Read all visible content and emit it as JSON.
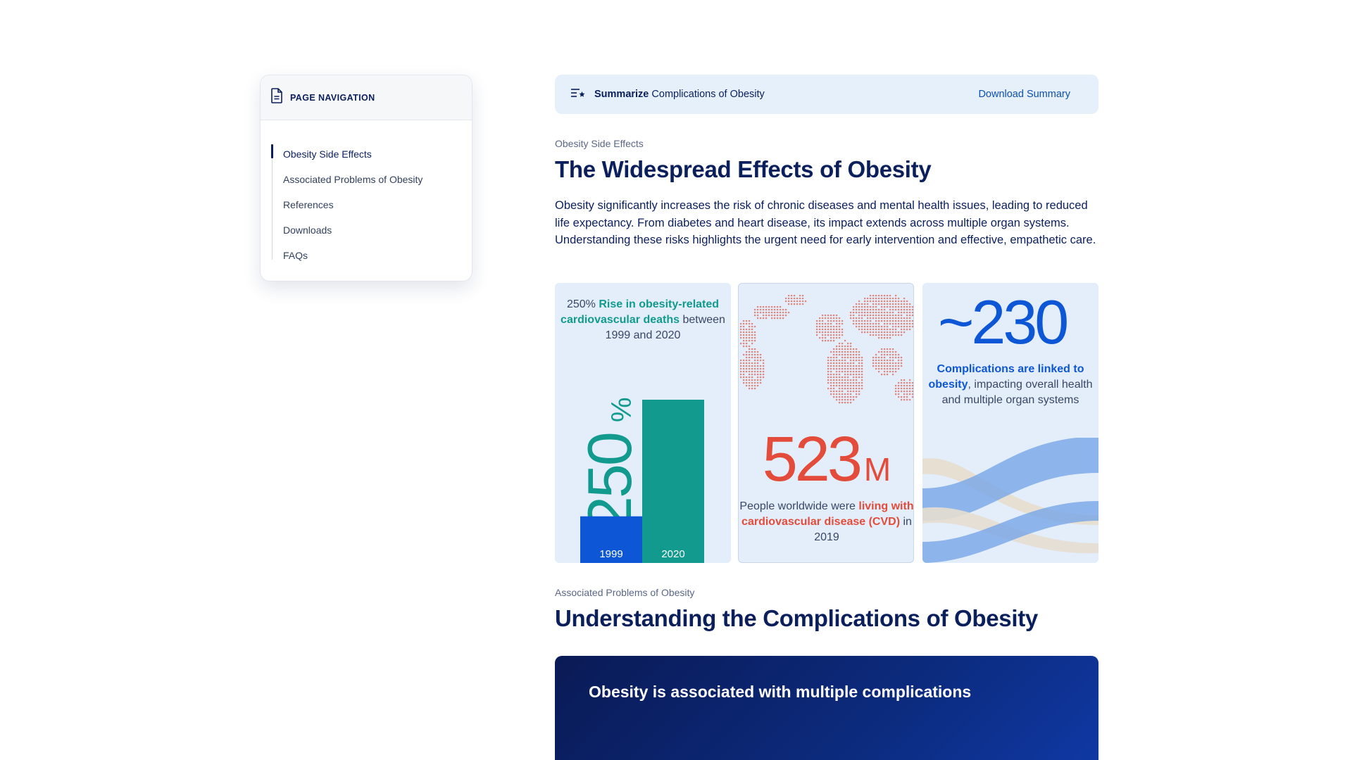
{
  "nav": {
    "title": "PAGE NAVIGATION",
    "items": [
      {
        "label": "Obesity Side Effects"
      },
      {
        "label": "Associated Problems of Obesity"
      },
      {
        "label": "References"
      },
      {
        "label": "Downloads"
      },
      {
        "label": "FAQs"
      }
    ]
  },
  "summary": {
    "bold": "Summarize",
    "text": " Complications of Obesity",
    "download": "Download Summary"
  },
  "section1": {
    "eyebrow": "Obesity Side Effects",
    "title": "The Widespread Effects of Obesity",
    "paragraph": "Obesity significantly increases the risk of chronic diseases and mental health issues, leading to reduced life expectancy. From diabetes and heart disease, its impact extends across multiple organ systems. Understanding these risks highlights the urgent need for early intervention and effective, empathetic care."
  },
  "cards": {
    "card1": {
      "caption_prefix": "250% ",
      "caption_highlight": "Rise in obesity-related cardiovascular deaths",
      "caption_suffix": " between 1999 and 2020",
      "big_value": "250",
      "big_unit": "%",
      "bars": [
        {
          "label": "1999",
          "value": 1,
          "color": "#0d56d6"
        },
        {
          "label": "2020",
          "value": 3.5,
          "color": "#129a8f"
        }
      ]
    },
    "card2": {
      "value": "523",
      "unit": "M",
      "caption_prefix": "People worldwide were ",
      "caption_highlight": "living with cardiovascular disease (CVD)",
      "caption_suffix": " in 2019",
      "map_icon": "world-map-dots"
    },
    "card3": {
      "value": "~230",
      "caption_highlight": "Complications are linked to obesity",
      "caption_suffix": ", impacting overall health and multiple organ systems",
      "decor_icon": "flowing-waves"
    }
  },
  "section2": {
    "eyebrow": "Associated Problems of Obesity",
    "title": "Understanding the Complications of Obesity",
    "panel_title": "Obesity is associated with multiple complications"
  },
  "colors": {
    "navy": "#0a1f5c",
    "teal": "#129a8f",
    "blue": "#0d56d6",
    "red": "#e34c3b",
    "light_blue_bg": "#e3eefa"
  }
}
